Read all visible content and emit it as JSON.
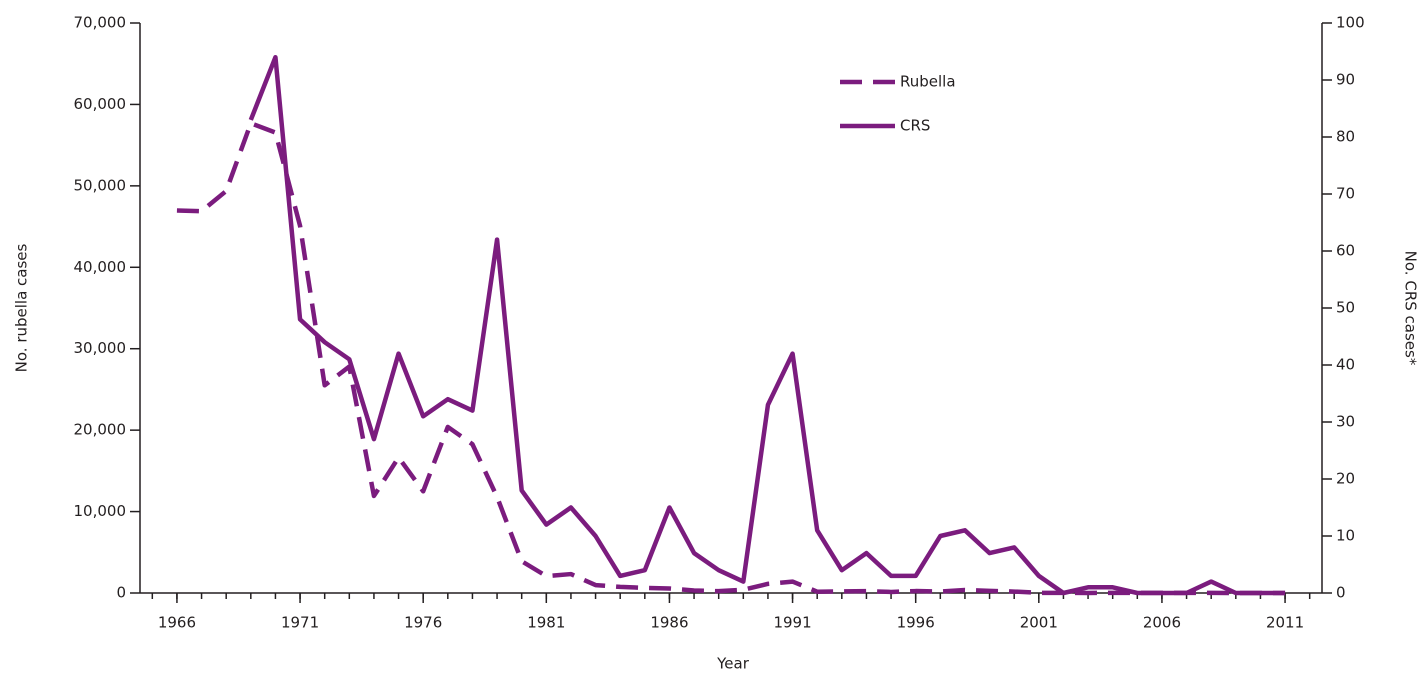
{
  "chart_data": {
    "type": "line",
    "x_label": "Year",
    "y_label": "No. rubella cases",
    "y2_label": "No. CRS cases*",
    "x": [
      1966,
      1967,
      1968,
      1969,
      1970,
      1971,
      1972,
      1973,
      1974,
      1975,
      1976,
      1977,
      1978,
      1979,
      1980,
      1981,
      1982,
      1983,
      1984,
      1985,
      1986,
      1987,
      1988,
      1989,
      1990,
      1991,
      1992,
      1993,
      1994,
      1995,
      1996,
      1997,
      1998,
      1999,
      2000,
      2001,
      2002,
      2003,
      2004,
      2005,
      2006,
      2007,
      2008,
      2009,
      2010,
      2011
    ],
    "series": [
      {
        "name": "Rubella",
        "color": "#7b1c7e",
        "dash": true,
        "values": [
          46975,
          46888,
          49371,
          57686,
          56552,
          45086,
          25507,
          27804,
          11917,
          16652,
          12491,
          20395,
          18269,
          11795,
          3904,
          2077,
          2325,
          970,
          752,
          630,
          551,
          306,
          225,
          396,
          1125,
          1401,
          160,
          192,
          227,
          128,
          238,
          181,
          364,
          267,
          176,
          23,
          18,
          7,
          10,
          11,
          11,
          12,
          16,
          3,
          5,
          4
        ]
      },
      {
        "name": "CRS",
        "color": "#7b1c7e",
        "dash": false,
        "axis": "y2",
        "values": [
          null,
          null,
          null,
          83,
          94,
          48,
          44,
          41,
          27,
          42,
          31,
          34,
          32,
          62,
          18,
          12,
          15,
          10,
          3,
          4,
          15,
          7,
          4,
          2,
          33,
          42,
          11,
          4,
          7,
          3,
          3,
          10,
          11,
          7,
          8,
          3,
          0,
          1,
          1,
          0,
          0,
          0,
          2,
          0,
          0,
          0
        ]
      }
    ],
    "xlim": [
      1964.5,
      2012.5
    ],
    "xticks": [
      1966,
      1971,
      1976,
      1981,
      1986,
      1991,
      1996,
      2001,
      2006,
      2011
    ],
    "ylim": [
      0,
      70000
    ],
    "yticks": [
      0,
      {
        "value": 10000,
        "label": "10,000"
      },
      {
        "value": 20000,
        "label": "20,000"
      },
      {
        "value": 30000,
        "label": "30,000"
      },
      {
        "value": 40000,
        "label": "40,000"
      },
      {
        "value": 50000,
        "label": "50,000"
      },
      {
        "value": 60000,
        "label": "60,000"
      },
      {
        "value": 70000,
        "label": "70,000"
      }
    ],
    "y2lim": [
      0,
      100
    ],
    "y2ticks": [
      0,
      10,
      20,
      30,
      40,
      50,
      60,
      70,
      80,
      90,
      100
    ],
    "legend": "top-right"
  }
}
